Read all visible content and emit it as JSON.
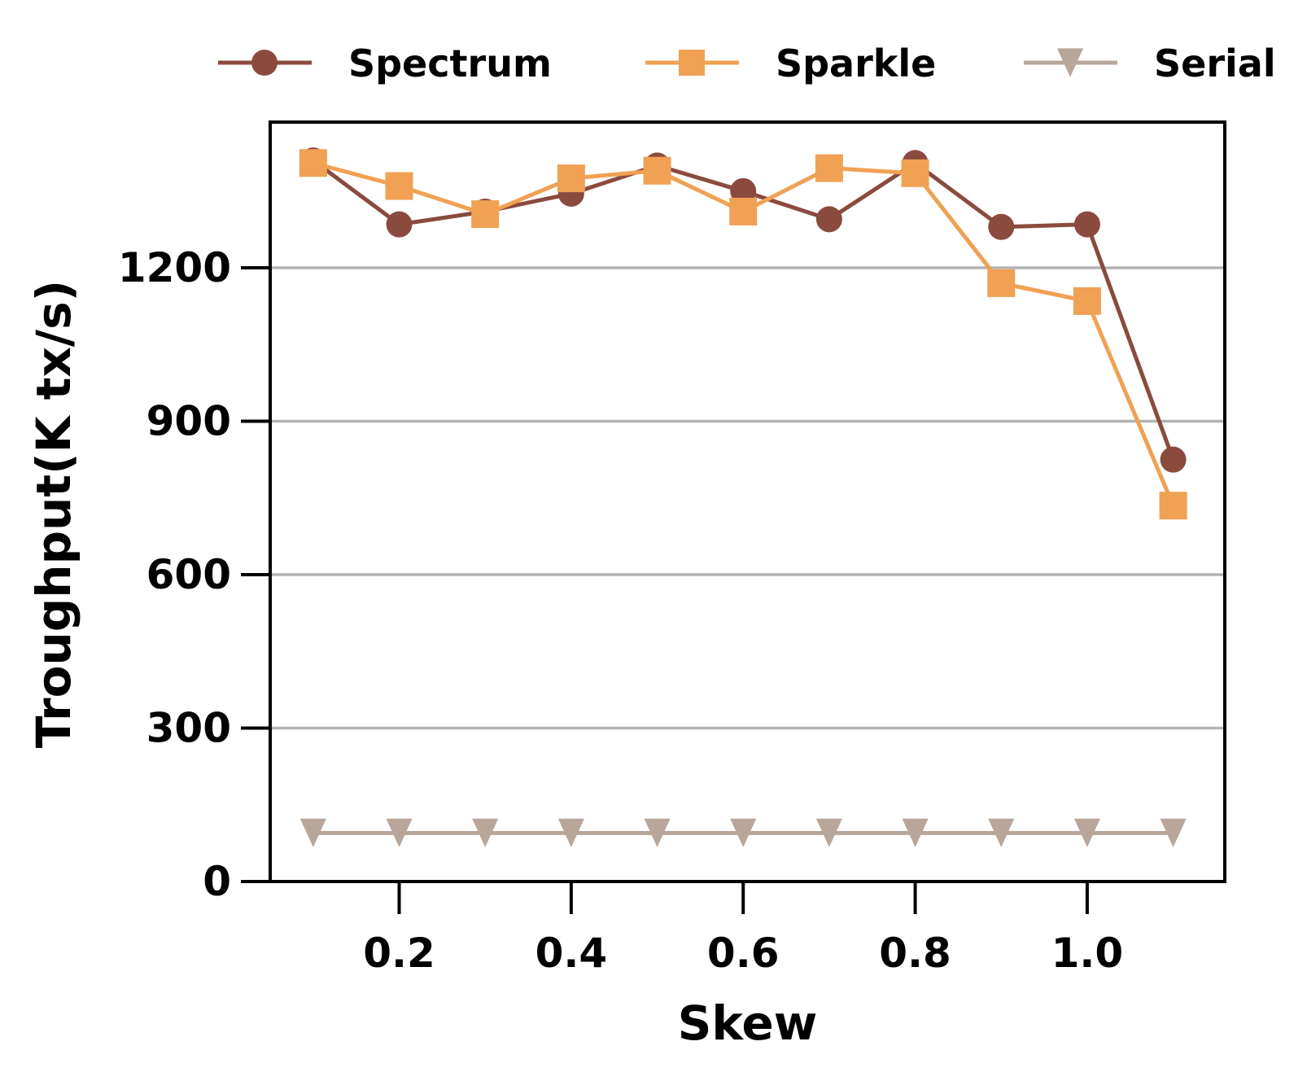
{
  "chart_data": {
    "type": "line",
    "xlabel": "Skew",
    "ylabel": "Troughput(K tx/s)",
    "x": [
      0.1,
      0.2,
      0.3,
      0.4,
      0.5,
      0.6,
      0.7,
      0.8,
      0.9,
      1.0,
      1.1
    ],
    "xticks": [
      0.2,
      0.4,
      0.6,
      0.8,
      1.0
    ],
    "xtick_labels": [
      "0.2",
      "0.4",
      "0.6",
      "0.8",
      "1.0"
    ],
    "yticks": [
      0,
      300,
      600,
      900,
      1200
    ],
    "ytick_labels": [
      "0",
      "300",
      "600",
      "900",
      "1200"
    ],
    "xlim": [
      0.05,
      1.16
    ],
    "ylim": [
      0,
      1485
    ],
    "grid": "horizontal",
    "legend_position": "top",
    "series": [
      {
        "name": "Spectrum",
        "marker": "circle",
        "color": "#8b4a3e",
        "values": [
          1410,
          1285,
          1310,
          1345,
          1400,
          1350,
          1295,
          1405,
          1280,
          1285,
          825
        ]
      },
      {
        "name": "Sparkle",
        "marker": "square",
        "color": "#f0a153",
        "values": [
          1405,
          1360,
          1305,
          1375,
          1390,
          1310,
          1395,
          1385,
          1170,
          1135,
          735
        ]
      },
      {
        "name": "Serial",
        "marker": "triangle-down",
        "color": "#b8a69b",
        "values": [
          95,
          95,
          95,
          95,
          95,
          95,
          95,
          95,
          95,
          95,
          95
        ]
      }
    ]
  }
}
